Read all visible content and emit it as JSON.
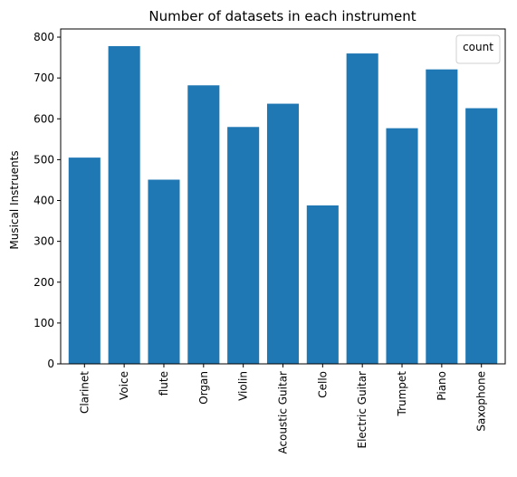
{
  "chart_data": {
    "type": "bar",
    "title": "Number of datasets in each instrument",
    "xlabel": "",
    "ylabel": "Musical Instruents",
    "categories": [
      "Clarinet",
      "Voice",
      "flute",
      "Organ",
      "Violin",
      "Acoustic Guitar",
      "Cello",
      "Electric Guitar",
      "Trumpet",
      "Piano",
      "Saxophone"
    ],
    "values": [
      505,
      778,
      451,
      682,
      580,
      637,
      388,
      760,
      577,
      721,
      626
    ],
    "ylim": [
      0,
      820
    ],
    "yticks": [
      0,
      100,
      200,
      300,
      400,
      500,
      600,
      700,
      800
    ],
    "bar_color": "#1f77b4",
    "grid": false,
    "legend": {
      "title": "count",
      "placement": "top-right"
    }
  }
}
